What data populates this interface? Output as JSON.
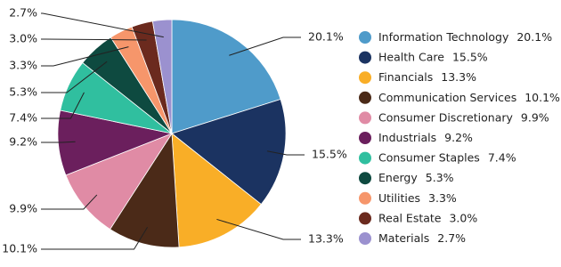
{
  "chart_data": {
    "type": "pie",
    "categories": [
      "Information Technology",
      "Health Care",
      "Financials",
      "Communication Services",
      "Consumer Discretionary",
      "Industrials",
      "Consumer Staples",
      "Energy",
      "Utilities",
      "Real Estate",
      "Materials"
    ],
    "values": [
      20.1,
      15.5,
      13.3,
      10.1,
      9.9,
      9.2,
      7.4,
      5.3,
      3.3,
      3.0,
      2.7
    ],
    "value_labels": [
      "20.1%",
      "15.5%",
      "13.3%",
      "10.1%",
      "9.9%",
      "9.2%",
      "7.4%",
      "5.3%",
      "3.3%",
      "3.0%",
      "2.7%"
    ],
    "colors": [
      "#4f9bca",
      "#1b3361",
      "#f9ae27",
      "#4b2a18",
      "#e08ba5",
      "#6b1f5d",
      "#30bf9f",
      "#0e4a40",
      "#f6966b",
      "#6b2a1e",
      "#9b91cf"
    ],
    "legend": "right"
  }
}
